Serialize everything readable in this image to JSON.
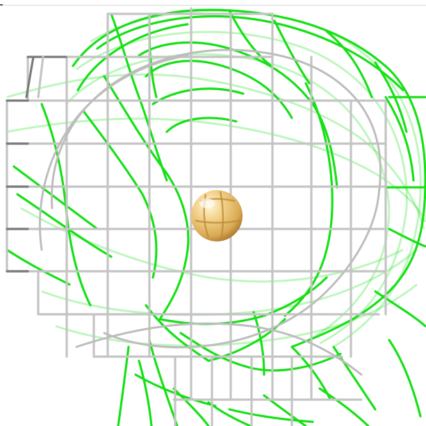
{
  "scene": {
    "description_free": true,
    "background_color": "#ffffff",
    "grid_color": "#c4c4c4",
    "grid_shadow_color": "#7a7a7a",
    "mesh_color": "#17e017",
    "sphere_highlight": "#fff6d6",
    "sphere_mid": "#f2c87a",
    "sphere_shadow": "#b98a3a"
  }
}
